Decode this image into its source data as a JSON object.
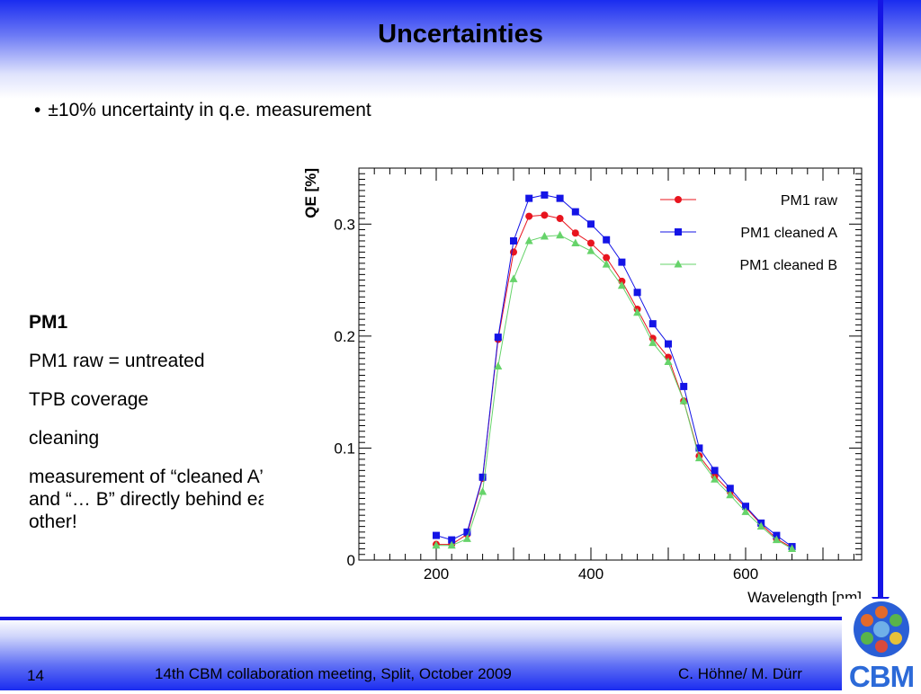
{
  "slide": {
    "title": "Uncertainties",
    "bullet": "±10% uncertainty in q.e. measurement",
    "left_heading": "PM1",
    "left_lines": [
      "PM1 raw = untreated",
      "TPB coverage",
      "cleaning",
      "measurement of “cleaned A” and “… B” directly behind each other!"
    ],
    "footer": {
      "page": "14",
      "meeting": "14th CBM collaboration meeting, Split, October 2009",
      "authors": "C. Höhne/ M. Dürr"
    },
    "logo_text": "CBM"
  },
  "chart_data": {
    "type": "line",
    "title": "",
    "xlabel": "Wavelength [nm]",
    "ylabel": "QE [%]",
    "xlim": [
      100,
      750
    ],
    "ylim": [
      0,
      0.35
    ],
    "xticks": [
      200,
      400,
      600
    ],
    "yticks": [
      0,
      0.1,
      0.2,
      0.3
    ],
    "ytick_labels": [
      "0",
      "0.1",
      "0.2",
      "0.3"
    ],
    "grid": false,
    "legend_position": "top-right",
    "x": [
      200,
      220,
      240,
      260,
      280,
      300,
      320,
      340,
      360,
      380,
      400,
      420,
      440,
      460,
      480,
      500,
      520,
      540,
      560,
      580,
      600,
      620,
      640,
      660
    ],
    "series": [
      {
        "name": "PM1 raw",
        "color": "#e8141e",
        "marker": "circle",
        "values": [
          0.014,
          0.014,
          0.023,
          0.073,
          0.197,
          0.275,
          0.307,
          0.308,
          0.305,
          0.292,
          0.283,
          0.27,
          0.249,
          0.224,
          0.198,
          0.181,
          0.142,
          0.093,
          0.075,
          0.061,
          0.047,
          0.032,
          0.019,
          0.011
        ]
      },
      {
        "name": "PM1 cleaned A",
        "color": "#1414e6",
        "marker": "square",
        "values": [
          0.022,
          0.018,
          0.025,
          0.074,
          0.199,
          0.285,
          0.323,
          0.326,
          0.323,
          0.311,
          0.3,
          0.286,
          0.266,
          0.239,
          0.211,
          0.193,
          0.155,
          0.1,
          0.08,
          0.064,
          0.048,
          0.033,
          0.022,
          0.012
        ]
      },
      {
        "name": "PM1 cleaned B",
        "color": "#66d36a",
        "marker": "triangle",
        "values": [
          0.013,
          0.013,
          0.019,
          0.061,
          0.173,
          0.251,
          0.285,
          0.289,
          0.29,
          0.283,
          0.276,
          0.264,
          0.245,
          0.221,
          0.194,
          0.177,
          0.142,
          0.091,
          0.072,
          0.058,
          0.043,
          0.03,
          0.018,
          0.01
        ]
      }
    ]
  }
}
